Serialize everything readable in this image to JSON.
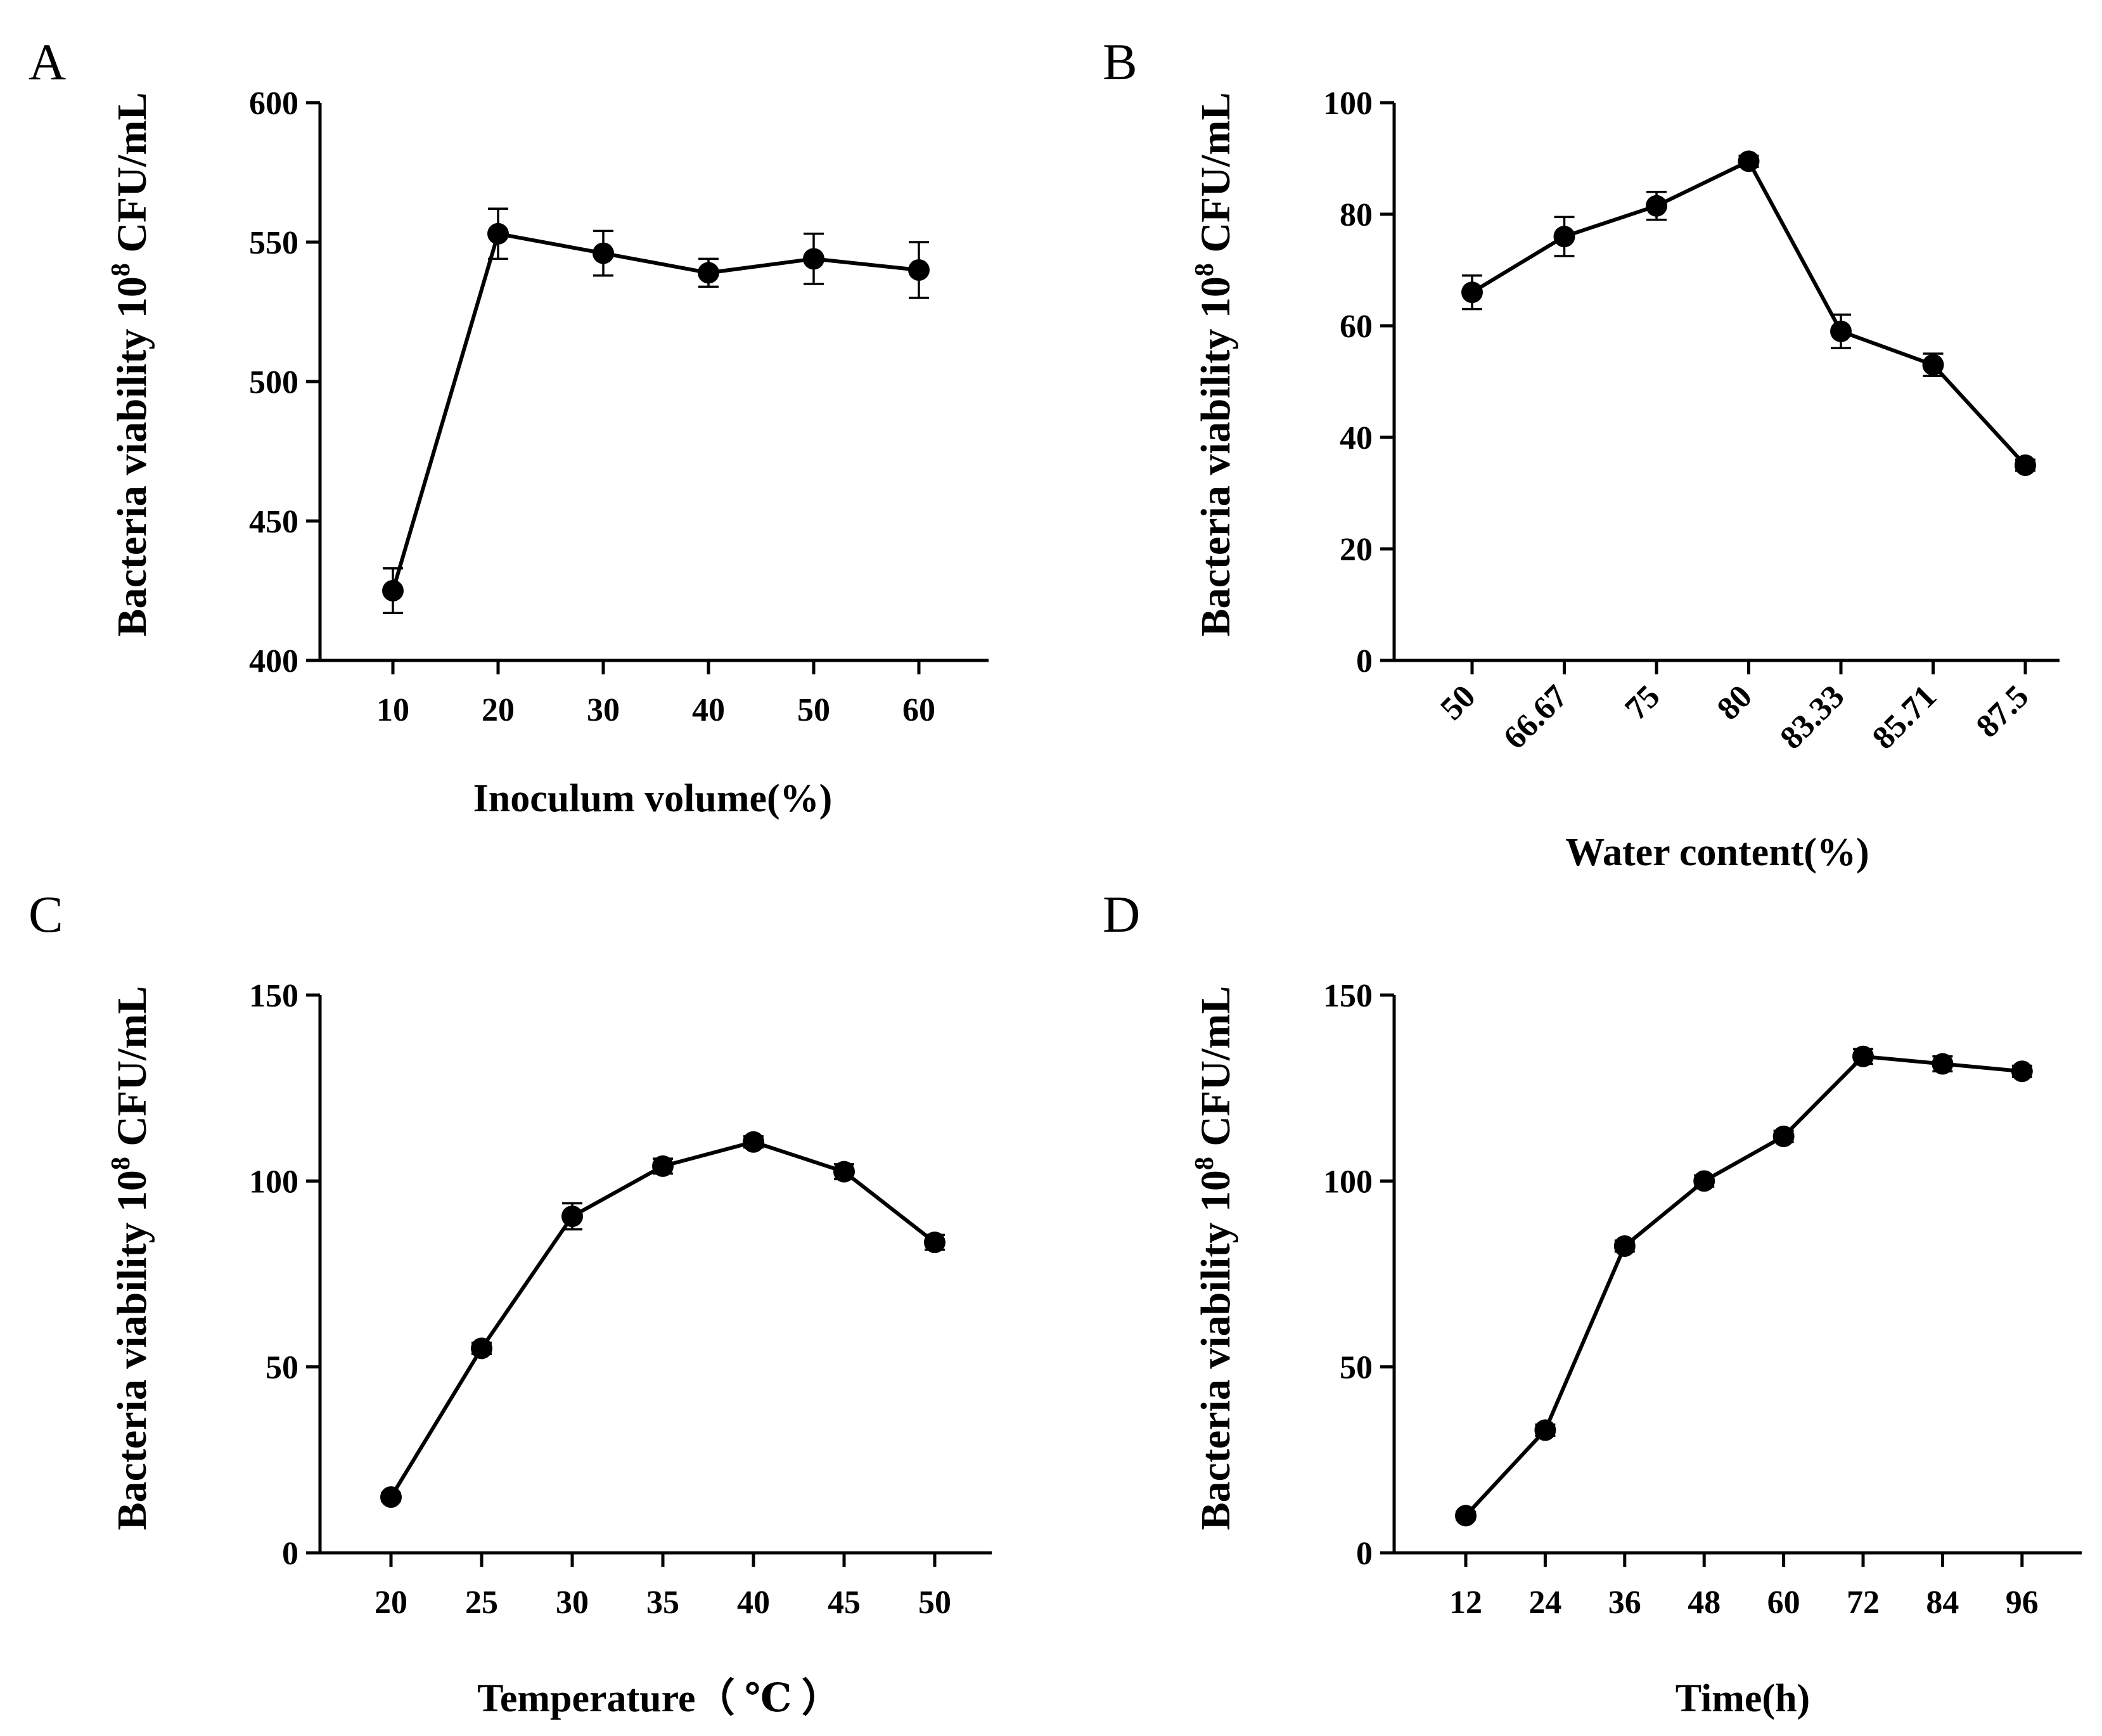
{
  "chart_data": [
    {
      "panel": "A",
      "type": "line",
      "ylabel": {
        "prefix": "Bacteria viability 10",
        "sup": "8",
        "suffix": " CFU/mL"
      },
      "xlabel": "Inoculum volume(%)",
      "categories": [
        "10",
        "20",
        "30",
        "40",
        "50",
        "60"
      ],
      "values": [
        425,
        553,
        546,
        539,
        544,
        540
      ],
      "errors": [
        8,
        9,
        8,
        5,
        9,
        10
      ],
      "ylim": [
        400,
        600
      ],
      "yticks": [
        400,
        450,
        500,
        550,
        600
      ],
      "xtick_rotation": 0
    },
    {
      "panel": "B",
      "type": "line",
      "ylabel": {
        "prefix": "Bacteria viability 10",
        "sup": "8",
        "suffix": " CFU/mL"
      },
      "xlabel": "Water content(%)",
      "categories": [
        "50",
        "66.67",
        "75",
        "80",
        "83.33",
        "85.71",
        "87.5"
      ],
      "values": [
        66,
        76,
        81.5,
        89.5,
        59,
        53,
        35
      ],
      "errors": [
        3,
        3.5,
        2.5,
        1,
        3,
        2,
        1
      ],
      "ylim": [
        0,
        100
      ],
      "yticks": [
        0,
        20,
        40,
        60,
        80,
        100
      ],
      "xtick_rotation": -45
    },
    {
      "panel": "C",
      "type": "line",
      "ylabel": {
        "prefix": "Bacteria viability 10",
        "sup": "8",
        "suffix": " CFU/mL"
      },
      "xlabel": "Temperature（ ℃ ）",
      "categories": [
        "20",
        "25",
        "30",
        "35",
        "40",
        "45",
        "50"
      ],
      "values": [
        15,
        55,
        90.5,
        104,
        110.5,
        102.5,
        83.5
      ],
      "errors": [
        1,
        1.5,
        3.5,
        2,
        1.5,
        2,
        2
      ],
      "ylim": [
        0,
        150
      ],
      "yticks": [
        0,
        50,
        100,
        150
      ],
      "xtick_rotation": 0
    },
    {
      "panel": "D",
      "type": "line",
      "ylabel": {
        "prefix": "Bacteria viability 10",
        "sup": "8",
        "suffix": " CFU/mL"
      },
      "xlabel": "Time(h)",
      "categories": [
        "12",
        "24",
        "36",
        "48",
        "60",
        "72",
        "84",
        "96"
      ],
      "values": [
        10,
        33,
        82.5,
        100,
        112,
        133.5,
        131.5,
        129.5
      ],
      "errors": [
        1,
        1.5,
        1.5,
        1.5,
        1.5,
        2,
        2,
        1.5
      ],
      "ylim": [
        0,
        150
      ],
      "yticks": [
        0,
        50,
        100,
        150
      ],
      "xtick_rotation": 0
    }
  ]
}
